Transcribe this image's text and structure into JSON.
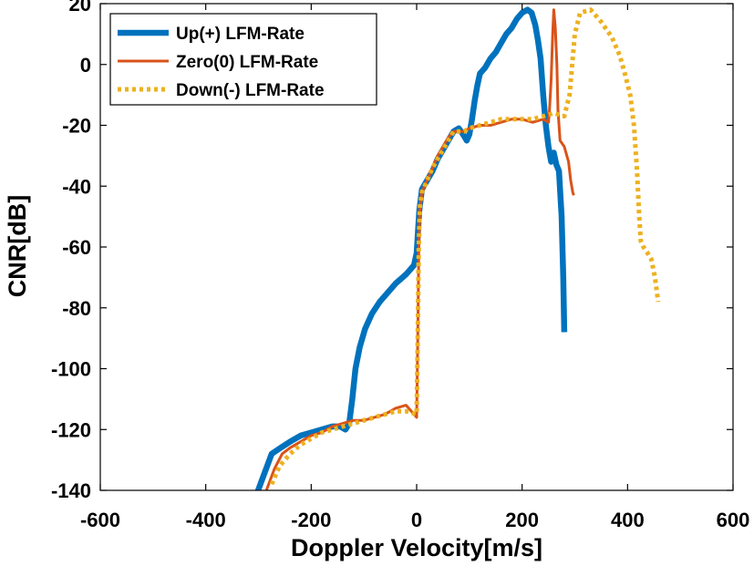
{
  "chart_data": {
    "type": "line",
    "title": "",
    "xlabel": "Doppler Velocity[m/s]",
    "ylabel": "CNR[dB]",
    "xlim": [
      -600,
      600
    ],
    "ylim": [
      -140,
      20
    ],
    "xticks": [
      -600,
      -400,
      -200,
      0,
      200,
      400,
      600
    ],
    "yticks": [
      20,
      0,
      -20,
      -40,
      -60,
      -80,
      -100,
      -120,
      -140
    ],
    "grid": false,
    "legend_position": "top-left",
    "series": [
      {
        "name": "Up(+) LFM-Rate",
        "color": "#0072BD",
        "style": "solid-thick",
        "points": [
          [
            -305,
            -142
          ],
          [
            -290,
            -135
          ],
          [
            -275,
            -128
          ],
          [
            -258,
            -126
          ],
          [
            -240,
            -124
          ],
          [
            -220,
            -122
          ],
          [
            -200,
            -121
          ],
          [
            -180,
            -120
          ],
          [
            -160,
            -119
          ],
          [
            -145,
            -119
          ],
          [
            -135,
            -120
          ],
          [
            -128,
            -118
          ],
          [
            -122,
            -110
          ],
          [
            -116,
            -100
          ],
          [
            -108,
            -93
          ],
          [
            -98,
            -87
          ],
          [
            -85,
            -82
          ],
          [
            -70,
            -78
          ],
          [
            -55,
            -75
          ],
          [
            -40,
            -72
          ],
          [
            -20,
            -69
          ],
          [
            -5,
            -66
          ],
          [
            0,
            -62
          ],
          [
            5,
            -48
          ],
          [
            10,
            -41
          ],
          [
            20,
            -38
          ],
          [
            30,
            -35
          ],
          [
            40,
            -31
          ],
          [
            50,
            -28
          ],
          [
            60,
            -25
          ],
          [
            70,
            -22
          ],
          [
            80,
            -21
          ],
          [
            88,
            -23
          ],
          [
            95,
            -25
          ],
          [
            100,
            -23
          ],
          [
            105,
            -18
          ],
          [
            110,
            -12
          ],
          [
            115,
            -7
          ],
          [
            120,
            -3
          ],
          [
            130,
            -1
          ],
          [
            140,
            2
          ],
          [
            150,
            4
          ],
          [
            160,
            7
          ],
          [
            170,
            10
          ],
          [
            180,
            12
          ],
          [
            190,
            15
          ],
          [
            200,
            17
          ],
          [
            210,
            18
          ],
          [
            218,
            17
          ],
          [
            225,
            13
          ],
          [
            230,
            8
          ],
          [
            235,
            2
          ],
          [
            240,
            -10
          ],
          [
            245,
            -20
          ],
          [
            250,
            -27
          ],
          [
            255,
            -32
          ],
          [
            260,
            -29
          ],
          [
            265,
            -33
          ],
          [
            270,
            -35
          ],
          [
            275,
            -50
          ],
          [
            278,
            -70
          ],
          [
            280,
            -88
          ]
        ]
      },
      {
        "name": "Zero(0) LFM-Rate",
        "color": "#D95319",
        "style": "solid",
        "points": [
          [
            -285,
            -140
          ],
          [
            -270,
            -133
          ],
          [
            -255,
            -128
          ],
          [
            -240,
            -126
          ],
          [
            -220,
            -124
          ],
          [
            -200,
            -122
          ],
          [
            -180,
            -121
          ],
          [
            -160,
            -119
          ],
          [
            -140,
            -118
          ],
          [
            -120,
            -117
          ],
          [
            -100,
            -117
          ],
          [
            -80,
            -116
          ],
          [
            -60,
            -115
          ],
          [
            -40,
            -113
          ],
          [
            -20,
            -112
          ],
          [
            0,
            -116
          ],
          [
            2,
            -90
          ],
          [
            4,
            -62
          ],
          [
            6,
            -48
          ],
          [
            10,
            -42
          ],
          [
            20,
            -38
          ],
          [
            30,
            -34
          ],
          [
            40,
            -30
          ],
          [
            50,
            -27
          ],
          [
            60,
            -24
          ],
          [
            70,
            -22
          ],
          [
            80,
            -22
          ],
          [
            90,
            -22
          ],
          [
            100,
            -21
          ],
          [
            120,
            -20
          ],
          [
            140,
            -20
          ],
          [
            160,
            -19
          ],
          [
            180,
            -18
          ],
          [
            200,
            -18
          ],
          [
            220,
            -19
          ],
          [
            240,
            -18
          ],
          [
            250,
            -19
          ],
          [
            252,
            -15
          ],
          [
            255,
            -5
          ],
          [
            258,
            10
          ],
          [
            260,
            18
          ],
          [
            263,
            12
          ],
          [
            266,
            0
          ],
          [
            268,
            -15
          ],
          [
            272,
            -25
          ],
          [
            280,
            -27
          ],
          [
            288,
            -32
          ],
          [
            292,
            -38
          ],
          [
            296,
            -42
          ],
          [
            298,
            -43
          ]
        ]
      },
      {
        "name": "Down(-) LFM-Rate",
        "color": "#EDB120",
        "style": "dotted",
        "points": [
          [
            -275,
            -138
          ],
          [
            -260,
            -132
          ],
          [
            -240,
            -128
          ],
          [
            -220,
            -125
          ],
          [
            -200,
            -123
          ],
          [
            -180,
            -121
          ],
          [
            -160,
            -120
          ],
          [
            -140,
            -119
          ],
          [
            -120,
            -118
          ],
          [
            -100,
            -117
          ],
          [
            -80,
            -116
          ],
          [
            -60,
            -115
          ],
          [
            -40,
            -114
          ],
          [
            -20,
            -114
          ],
          [
            0,
            -115
          ],
          [
            2,
            -90
          ],
          [
            4,
            -60
          ],
          [
            6,
            -47
          ],
          [
            10,
            -42
          ],
          [
            20,
            -38
          ],
          [
            30,
            -34
          ],
          [
            40,
            -31
          ],
          [
            50,
            -28
          ],
          [
            60,
            -25
          ],
          [
            70,
            -22
          ],
          [
            80,
            -22
          ],
          [
            90,
            -22
          ],
          [
            100,
            -21
          ],
          [
            120,
            -20
          ],
          [
            140,
            -19
          ],
          [
            160,
            -18
          ],
          [
            180,
            -18
          ],
          [
            200,
            -18
          ],
          [
            220,
            -18
          ],
          [
            240,
            -17
          ],
          [
            260,
            -16
          ],
          [
            280,
            -17
          ],
          [
            290,
            -10
          ],
          [
            295,
            0
          ],
          [
            300,
            10
          ],
          [
            310,
            17
          ],
          [
            330,
            18
          ],
          [
            350,
            14
          ],
          [
            370,
            9
          ],
          [
            385,
            3
          ],
          [
            395,
            -3
          ],
          [
            405,
            -10
          ],
          [
            412,
            -20
          ],
          [
            418,
            -35
          ],
          [
            422,
            -50
          ],
          [
            425,
            -58
          ],
          [
            430,
            -60
          ],
          [
            438,
            -62
          ],
          [
            445,
            -64
          ],
          [
            452,
            -70
          ],
          [
            458,
            -78
          ]
        ]
      }
    ]
  }
}
